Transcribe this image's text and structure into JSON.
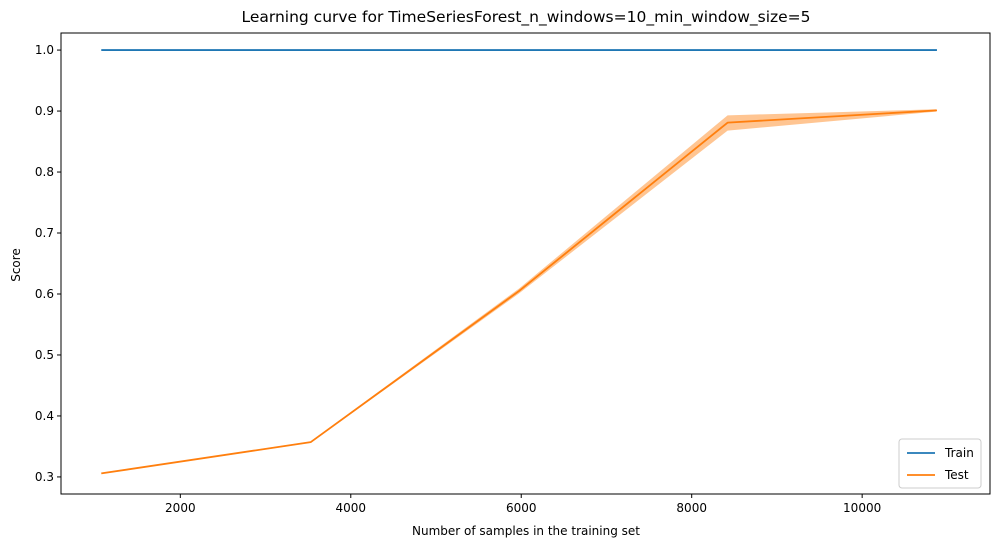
{
  "chart_data": {
    "type": "line",
    "title": "Learning curve for TimeSeriesForest_n_windows=10_min_window_size=5",
    "xlabel": "Number of samples in the training set",
    "ylabel": "Score",
    "xlim": [
      600,
      11500
    ],
    "ylim": [
      0.272,
      1.028
    ],
    "xticks": [
      2000,
      4000,
      6000,
      8000,
      10000
    ],
    "yticks": [
      0.3,
      0.4,
      0.5,
      0.6,
      0.7,
      0.8,
      0.9,
      1.0
    ],
    "x": [
      1083,
      3529,
      5975,
      8421,
      10867
    ],
    "series": [
      {
        "name": "Train",
        "color": "#1f77b4",
        "values": [
          1.0,
          1.0,
          1.0,
          1.0,
          1.0
        ],
        "band_lower": [
          1.0,
          1.0,
          1.0,
          1.0,
          1.0
        ],
        "band_upper": [
          1.0,
          1.0,
          1.0,
          1.0,
          1.0
        ]
      },
      {
        "name": "Test",
        "color": "#ff7f0e",
        "values": [
          0.306,
          0.357,
          0.605,
          0.881,
          0.901
        ],
        "band_lower": [
          0.305,
          0.356,
          0.601,
          0.868,
          0.899
        ],
        "band_upper": [
          0.307,
          0.358,
          0.609,
          0.893,
          0.903
        ]
      }
    ],
    "legend_position": "lower-right",
    "grid": false
  }
}
